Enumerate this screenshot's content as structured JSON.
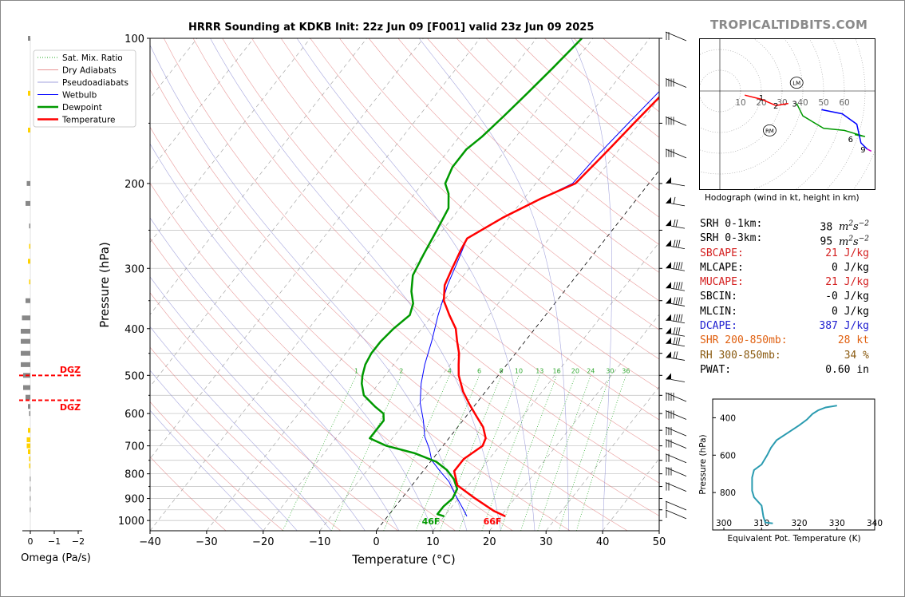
{
  "title": "HRRR Sounding at KDKB Init: 22z Jun 09 [F001] valid 23z Jun 09 2025",
  "brand": "TROPICALTIDBITS.COM",
  "colors": {
    "temperature": "#ff0000",
    "dewpoint": "#009900",
    "wetbulb": "#0000ff",
    "dry_adiabats": "#e07070",
    "pseudoadiabats": "#8080d0",
    "mixing_ratio": "#22aa22",
    "theta_e": "#2a9bb0"
  },
  "chart_data": [
    {
      "type": "line",
      "name": "skewt",
      "xlabel": "Temperature (°C)",
      "ylabel": "Pressure (hPa)",
      "xlim": [
        -40,
        50
      ],
      "ylim": [
        1050,
        100
      ],
      "yscale": "log",
      "x_ticks": [
        -40,
        -30,
        -20,
        -10,
        0,
        10,
        20,
        30,
        40,
        50
      ],
      "y_ticks": [
        100,
        200,
        300,
        400,
        500,
        600,
        700,
        800,
        900,
        1000
      ],
      "legend": [
        "Sat. Mix. Ratio",
        "Dry Adiabats",
        "Pseudoadiabats",
        "Wetbulb",
        "Dewpoint",
        "Temperature"
      ],
      "legend_position": "top-left",
      "series": [
        {
          "name": "Temperature",
          "points": [
            [
              20.8,
              980
            ],
            [
              18,
              955
            ],
            [
              13,
              900
            ],
            [
              8,
              845
            ],
            [
              5.5,
              790
            ],
            [
              5.5,
              745
            ],
            [
              7,
              700
            ],
            [
              6.5,
              675
            ],
            [
              4.5,
              640
            ],
            [
              2,
              610
            ],
            [
              -1,
              575
            ],
            [
              -4,
              540
            ],
            [
              -7,
              500
            ],
            [
              -8.5,
              475
            ],
            [
              -10,
              450
            ],
            [
              -12,
              425
            ],
            [
              -14,
              400
            ],
            [
              -17,
              375
            ],
            [
              -20,
              350
            ],
            [
              -22,
              325
            ],
            [
              -23,
              300
            ],
            [
              -24,
              275
            ],
            [
              -24.5,
              260
            ],
            [
              -21,
              235
            ],
            [
              -17,
              215
            ],
            [
              -13,
              200
            ],
            [
              -12,
              175
            ],
            [
              -11,
              150
            ],
            [
              -10,
              130
            ],
            [
              -9,
              115
            ],
            [
              -6,
              100
            ]
          ]
        },
        {
          "name": "Dewpoint",
          "points": [
            [
              10,
              980
            ],
            [
              8.5,
              970
            ],
            [
              8.5,
              935
            ],
            [
              9,
              900
            ],
            [
              8.5,
              860
            ],
            [
              6.5,
              820
            ],
            [
              4,
              785
            ],
            [
              1,
              755
            ],
            [
              -4,
              725
            ],
            [
              -10,
              700
            ],
            [
              -14,
              675
            ],
            [
              -14,
              650
            ],
            [
              -14,
              620
            ],
            [
              -15,
              600
            ],
            [
              -17.5,
              580
            ],
            [
              -21,
              550
            ],
            [
              -23,
              520
            ],
            [
              -24,
              500
            ],
            [
              -25,
              475
            ],
            [
              -25.5,
              450
            ],
            [
              -25.5,
              425
            ],
            [
              -25,
              400
            ],
            [
              -24,
              375
            ],
            [
              -25,
              355
            ],
            [
              -27,
              335
            ],
            [
              -29,
              310
            ],
            [
              -30,
              280
            ],
            [
              -31,
              250
            ],
            [
              -32,
              225
            ],
            [
              -34,
              210
            ],
            [
              -36,
              200
            ],
            [
              -37,
              185
            ],
            [
              -37,
              170
            ],
            [
              -36,
              160
            ],
            [
              -35,
              145
            ],
            [
              -34,
              130
            ],
            [
              -33,
              115
            ],
            [
              -32,
              100
            ]
          ]
        },
        {
          "name": "Wetbulb",
          "points": [
            [
              14,
              980
            ],
            [
              12,
              940
            ],
            [
              9,
              885
            ],
            [
              6,
              830
            ],
            [
              3,
              790
            ],
            [
              0,
              750
            ],
            [
              -2,
              710
            ],
            [
              -4.5,
              670
            ],
            [
              -7,
              620
            ],
            [
              -10,
              570
            ],
            [
              -12.5,
              520
            ],
            [
              -14.5,
              475
            ],
            [
              -16.5,
              425
            ],
            [
              -19,
              375
            ],
            [
              -21.5,
              325
            ],
            [
              -23,
              290
            ],
            [
              -24.5,
              260
            ],
            [
              -21,
              235
            ],
            [
              -17,
              215
            ],
            [
              -13.5,
              200
            ],
            [
              -13,
              175
            ],
            [
              -12,
              150
            ],
            [
              -11,
              130
            ],
            [
              -10,
              115
            ],
            [
              -7,
              100
            ]
          ]
        }
      ],
      "omega_axis": {
        "xlabel": "Omega (Pa/s)",
        "ticks": [
          "0",
          "−1",
          "−2"
        ]
      },
      "dgz_labels": [
        "DGZ",
        "DGZ"
      ],
      "surface_labels": {
        "dewpoint": "46F",
        "temperature": "66F"
      },
      "mixing_ratio_labels": [
        "1",
        "2",
        "4",
        "6",
        "8",
        "10",
        "13",
        "16",
        "20",
        "24",
        "30",
        "36"
      ]
    },
    {
      "type": "line",
      "name": "hodograph",
      "xlabel": "Hodograph (wind in kt, height in km)",
      "ring_labels": [
        "10",
        "20",
        "30",
        "40",
        "50",
        "60"
      ],
      "markers": [
        "LM",
        "RM"
      ],
      "height_labels": [
        "1",
        "2",
        "3",
        "6",
        "9"
      ]
    },
    {
      "type": "line",
      "name": "theta_e",
      "xlabel": "Equivalent Pot. Temperature (K)",
      "ylabel": "Pressure (hPa)",
      "xlim": [
        300,
        340
      ],
      "x_ticks": [
        300,
        310,
        320,
        330,
        340
      ],
      "y_ticks": [
        400,
        600,
        800
      ],
      "ylim": [
        1000,
        300
      ],
      "series": [
        {
          "name": "Theta-E",
          "points": [
            [
              313,
              965
            ],
            [
              311,
              960
            ],
            [
              310.5,
              930
            ],
            [
              310,
              870
            ],
            [
              308,
              825
            ],
            [
              307.5,
              790
            ],
            [
              307.5,
              720
            ],
            [
              308,
              680
            ],
            [
              310,
              650
            ],
            [
              311.5,
              600
            ],
            [
              312.5,
              560
            ],
            [
              314,
              520
            ],
            [
              317,
              480
            ],
            [
              320,
              440
            ],
            [
              322,
              410
            ],
            [
              323.5,
              380
            ],
            [
              325,
              360
            ],
            [
              327,
              345
            ],
            [
              330,
              335
            ]
          ]
        }
      ]
    }
  ],
  "stats": [
    {
      "label": "SRH 0-1km:",
      "value": "38",
      "unit_base": "m",
      "unit_sup1": "2",
      "unit_mid": "s",
      "unit_sup2": "−2",
      "color": "#000000"
    },
    {
      "label": "SRH 0-3km:",
      "value": "95",
      "unit_base": "m",
      "unit_sup1": "2",
      "unit_mid": "s",
      "unit_sup2": "−2",
      "color": "#000000"
    },
    {
      "label": "SBCAPE:",
      "value": "21 J/kg",
      "color": "#d42020"
    },
    {
      "label": "MLCAPE:",
      "value": "0 J/kg",
      "color": "#000000"
    },
    {
      "label": "MUCAPE:",
      "value": "21 J/kg",
      "color": "#d42020"
    },
    {
      "label": "SBCIN:",
      "value": "-0 J/kg",
      "color": "#000000"
    },
    {
      "label": "MLCIN:",
      "value": "0 J/kg",
      "color": "#000000"
    },
    {
      "label": "DCAPE:",
      "value": "387 J/kg",
      "color": "#2020d0"
    },
    {
      "label": "SHR 200-850mb:",
      "value": "28 kt",
      "color": "#e06010"
    },
    {
      "label": "RH 300-850mb:",
      "value": "34 %",
      "color": "#8a5a10"
    },
    {
      "label": "PWAT:",
      "value": "0.60 in",
      "color": "#000000"
    }
  ]
}
